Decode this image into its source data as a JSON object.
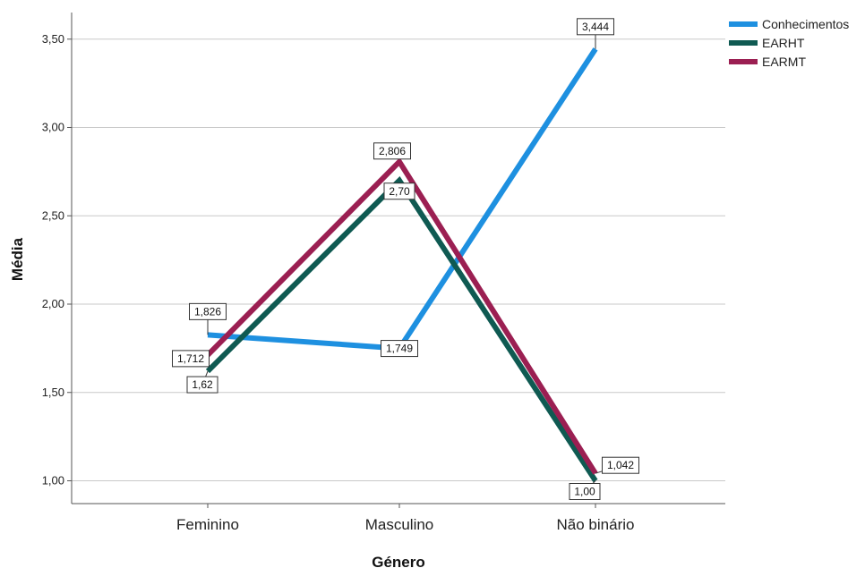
{
  "chart_data": {
    "type": "line",
    "xlabel": "Género",
    "ylabel": "Média",
    "categories": [
      "Feminino",
      "Masculino",
      "Não binário"
    ],
    "ylim": [
      0.85,
      3.6
    ],
    "yticks": [
      "1,00",
      "1,50",
      "2,00",
      "2,50",
      "3,00",
      "3,50"
    ],
    "ytick_values": [
      1.0,
      1.5,
      2.0,
      2.5,
      3.0,
      3.5
    ],
    "grid": true,
    "legend_position": "top-right",
    "series": [
      {
        "name": "Conhecimentos",
        "color": "#1e90e0",
        "values": [
          1.826,
          1.749,
          3.444
        ],
        "labels": [
          "1,826",
          "1,749",
          "3,444"
        ]
      },
      {
        "name": "EARHT",
        "color": "#0f5a52",
        "values": [
          1.62,
          2.7,
          1.0
        ],
        "labels": [
          "1,62",
          "2,70",
          "1,00"
        ]
      },
      {
        "name": "EARMT",
        "color": "#9b1f52",
        "values": [
          1.712,
          2.806,
          1.042
        ],
        "labels": [
          "1,712",
          "2,806",
          "1,042"
        ]
      }
    ]
  }
}
